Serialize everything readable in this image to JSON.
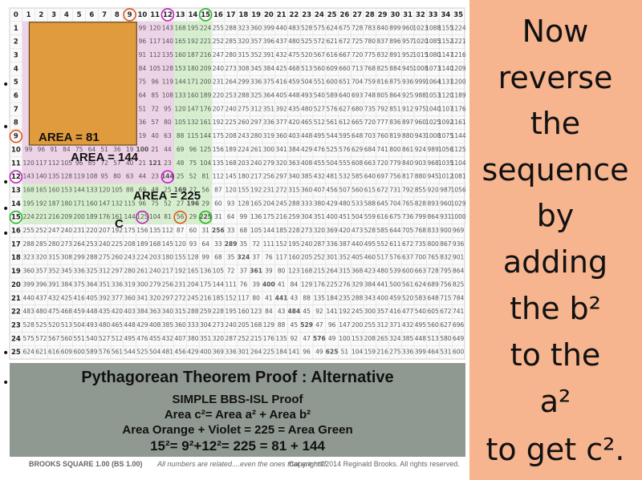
{
  "grid": {
    "header": [
      0,
      1,
      2,
      3,
      4,
      5,
      6,
      7,
      8,
      9,
      10,
      11,
      12,
      13,
      14,
      15,
      16,
      17,
      18,
      19,
      20,
      21,
      22,
      23,
      24,
      25,
      26,
      27,
      28,
      29,
      30,
      31,
      32,
      33,
      34,
      35
    ],
    "rows": [
      {
        "label": 1,
        "cells": [
          null,
          null,
          null,
          null,
          null,
          null,
          null,
          null,
          null,
          99,
          120,
          143,
          168,
          195,
          224,
          255,
          288,
          323,
          360,
          399,
          440,
          483,
          528,
          575,
          624,
          675,
          728,
          783,
          840,
          899,
          960,
          1023,
          1088,
          1155,
          1224
        ]
      },
      {
        "label": 2,
        "cells": [
          null,
          null,
          null,
          null,
          null,
          null,
          null,
          null,
          null,
          96,
          117,
          140,
          165,
          192,
          221,
          252,
          285,
          320,
          357,
          396,
          437,
          480,
          525,
          572,
          621,
          672,
          725,
          780,
          837,
          896,
          957,
          1020,
          1085,
          1152,
          1221
        ]
      },
      {
        "label": 3,
        "cells": [
          null,
          null,
          null,
          null,
          null,
          null,
          null,
          null,
          null,
          91,
          112,
          135,
          160,
          187,
          216,
          247,
          280,
          315,
          352,
          391,
          432,
          475,
          520,
          567,
          616,
          667,
          720,
          775,
          832,
          891,
          952,
          1015,
          1080,
          1147,
          1216
        ]
      },
      {
        "label": 4,
        "cells": [
          null,
          null,
          null,
          null,
          null,
          null,
          null,
          null,
          null,
          84,
          105,
          128,
          153,
          180,
          209,
          240,
          273,
          308,
          345,
          384,
          425,
          468,
          513,
          560,
          609,
          660,
          713,
          768,
          825,
          884,
          945,
          1008,
          1073,
          1140,
          1209
        ]
      },
      {
        "label": 5,
        "cells": [
          null,
          null,
          null,
          null,
          null,
          null,
          null,
          null,
          null,
          75,
          96,
          119,
          144,
          171,
          200,
          231,
          264,
          299,
          336,
          375,
          416,
          459,
          504,
          551,
          600,
          651,
          704,
          759,
          816,
          875,
          936,
          999,
          1064,
          1131,
          1200
        ]
      },
      {
        "label": 6,
        "cells": [
          null,
          null,
          null,
          null,
          null,
          null,
          null,
          null,
          null,
          64,
          85,
          108,
          133,
          160,
          189,
          220,
          253,
          288,
          325,
          364,
          405,
          448,
          493,
          540,
          589,
          640,
          693,
          748,
          805,
          864,
          925,
          988,
          1053,
          1120,
          1189
        ]
      },
      {
        "label": 7,
        "cells": [
          null,
          null,
          null,
          null,
          null,
          null,
          null,
          null,
          null,
          51,
          72,
          95,
          120,
          147,
          176,
          207,
          240,
          275,
          312,
          351,
          392,
          435,
          480,
          527,
          576,
          627,
          680,
          735,
          792,
          851,
          912,
          975,
          1040,
          1107,
          1176
        ]
      },
      {
        "label": 8,
        "cells": [
          null,
          null,
          null,
          null,
          null,
          null,
          null,
          null,
          null,
          36,
          57,
          80,
          105,
          132,
          161,
          192,
          225,
          260,
          297,
          336,
          377,
          420,
          465,
          512,
          561,
          612,
          665,
          720,
          777,
          836,
          897,
          960,
          1025,
          1092,
          1161
        ]
      },
      {
        "label": 9,
        "cells": [
          null,
          null,
          null,
          null,
          null,
          null,
          null,
          null,
          null,
          19,
          40,
          63,
          88,
          115,
          144,
          175,
          208,
          243,
          280,
          319,
          360,
          403,
          448,
          495,
          544,
          595,
          648,
          703,
          760,
          819,
          880,
          943,
          1008,
          1075,
          1144
        ]
      },
      {
        "label": 10,
        "cells": [
          99,
          96,
          91,
          84,
          75,
          64,
          51,
          36,
          19,
          100,
          21,
          44,
          69,
          96,
          125,
          156,
          189,
          224,
          261,
          300,
          341,
          384,
          429,
          476,
          525,
          576,
          629,
          684,
          741,
          800,
          861,
          924,
          989,
          1056,
          1125
        ]
      },
      {
        "label": 11,
        "cells": [
          120,
          117,
          112,
          105,
          96,
          85,
          72,
          57,
          40,
          21,
          121,
          23,
          48,
          75,
          104,
          135,
          168,
          203,
          240,
          279,
          320,
          363,
          408,
          455,
          504,
          555,
          608,
          663,
          720,
          779,
          840,
          903,
          968,
          1035,
          1104
        ]
      },
      {
        "label": 12,
        "cells": [
          143,
          140,
          135,
          128,
          119,
          108,
          95,
          80,
          63,
          44,
          23,
          144,
          25,
          52,
          81,
          112,
          145,
          180,
          217,
          256,
          297,
          340,
          385,
          432,
          481,
          532,
          585,
          640,
          697,
          756,
          817,
          880,
          945,
          1012,
          1081
        ]
      },
      {
        "label": 13,
        "cells": [
          168,
          165,
          160,
          153,
          144,
          133,
          120,
          105,
          88,
          69,
          48,
          25,
          169,
          27,
          56,
          87,
          120,
          155,
          192,
          231,
          272,
          315,
          360,
          407,
          456,
          507,
          560,
          615,
          672,
          731,
          792,
          855,
          920,
          987,
          1056
        ]
      },
      {
        "label": 14,
        "cells": [
          195,
          192,
          187,
          180,
          171,
          160,
          147,
          132,
          115,
          96,
          75,
          52,
          27,
          196,
          29,
          60,
          93,
          128,
          165,
          204,
          245,
          288,
          333,
          380,
          429,
          480,
          533,
          588,
          645,
          704,
          765,
          828,
          893,
          960,
          1029
        ]
      },
      {
        "label": 15,
        "cells": [
          224,
          221,
          216,
          209,
          200,
          189,
          176,
          161,
          144,
          125,
          104,
          81,
          56,
          29,
          225,
          31,
          64,
          99,
          136,
          175,
          216,
          259,
          304,
          351,
          400,
          451,
          504,
          559,
          616,
          675,
          736,
          799,
          864,
          931,
          1000
        ]
      },
      {
        "label": 16,
        "cells": [
          255,
          252,
          247,
          240,
          231,
          220,
          207,
          192,
          175,
          156,
          135,
          112,
          87,
          60,
          31,
          256,
          33,
          68,
          105,
          144,
          185,
          228,
          273,
          320,
          369,
          420,
          473,
          528,
          585,
          644,
          705,
          768,
          833,
          900,
          969
        ]
      },
      {
        "label": 17,
        "cells": [
          288,
          285,
          280,
          273,
          264,
          253,
          240,
          225,
          208,
          189,
          168,
          145,
          120,
          93,
          64,
          33,
          289,
          35,
          72,
          111,
          152,
          195,
          240,
          287,
          336,
          387,
          440,
          495,
          552,
          611,
          672,
          735,
          800,
          867,
          936
        ]
      },
      {
        "label": 18,
        "cells": [
          323,
          320,
          315,
          308,
          299,
          288,
          275,
          260,
          243,
          224,
          203,
          180,
          155,
          128,
          99,
          68,
          35,
          324,
          37,
          76,
          117,
          160,
          205,
          252,
          301,
          352,
          405,
          460,
          517,
          576,
          637,
          700,
          765,
          832,
          901
        ]
      },
      {
        "label": 19,
        "cells": [
          360,
          357,
          352,
          345,
          336,
          325,
          312,
          297,
          280,
          261,
          240,
          217,
          192,
          165,
          136,
          105,
          72,
          37,
          361,
          39,
          80,
          123,
          168,
          215,
          264,
          315,
          368,
          423,
          480,
          539,
          600,
          663,
          728,
          795,
          864
        ]
      },
      {
        "label": 20,
        "cells": [
          399,
          396,
          391,
          384,
          375,
          364,
          351,
          336,
          319,
          300,
          279,
          256,
          231,
          204,
          175,
          144,
          111,
          76,
          39,
          400,
          41,
          84,
          129,
          176,
          225,
          276,
          329,
          384,
          441,
          500,
          561,
          624,
          689,
          756,
          825
        ]
      },
      {
        "label": 21,
        "cells": [
          440,
          437,
          432,
          425,
          416,
          405,
          392,
          377,
          360,
          341,
          320,
          297,
          272,
          245,
          216,
          185,
          152,
          117,
          80,
          41,
          441,
          43,
          88,
          135,
          184,
          235,
          288,
          343,
          400,
          459,
          520,
          583,
          648,
          715,
          784
        ]
      },
      {
        "label": 22,
        "cells": [
          483,
          480,
          475,
          468,
          459,
          448,
          435,
          420,
          403,
          384,
          363,
          340,
          315,
          288,
          259,
          228,
          195,
          160,
          123,
          84,
          43,
          484,
          45,
          92,
          141,
          192,
          245,
          300,
          357,
          416,
          477,
          540,
          605,
          672,
          741
        ]
      },
      {
        "label": 23,
        "cells": [
          528,
          525,
          520,
          513,
          504,
          493,
          480,
          465,
          448,
          429,
          408,
          385,
          360,
          333,
          304,
          273,
          240,
          205,
          168,
          129,
          88,
          45,
          529,
          47,
          96,
          147,
          200,
          255,
          312,
          371,
          432,
          495,
          560,
          627,
          696
        ]
      },
      {
        "label": 24,
        "cells": [
          575,
          572,
          567,
          560,
          551,
          540,
          527,
          512,
          495,
          476,
          455,
          432,
          407,
          380,
          351,
          320,
          287,
          252,
          215,
          176,
          135,
          92,
          47,
          576,
          49,
          100,
          153,
          208,
          265,
          324,
          385,
          448,
          513,
          580,
          649
        ]
      },
      {
        "label": 25,
        "cells": [
          624,
          621,
          616,
          609,
          600,
          589,
          576,
          561,
          544,
          525,
          504,
          481,
          456,
          429,
          400,
          369,
          336,
          301,
          264,
          225,
          184,
          141,
          96,
          49,
          625,
          51,
          104,
          159,
          216,
          275,
          336,
          399,
          464,
          531,
          600
        ]
      }
    ]
  },
  "labels": {
    "area_orange": "AREA = 81",
    "area_violet": "AREA = 144",
    "area_green": "AREA = 225",
    "c": "C"
  },
  "proof": {
    "title": "Pythagorean Theorem  Proof : Alternative",
    "lines": [
      "SIMPLE BBS-ISL Proof",
      "Area c²= Area a² + Area b²",
      "Area Orange + Violet = 225 = Area Green",
      "15²= 9²+12²= 225 = 81 + 144"
    ]
  },
  "footer": {
    "name": "BROOKS SQUARE 1.00 (BS 1.00)",
    "note": "All numbers are related....even the ones that are not!",
    "copyright": "Copyright©2014 Reginald Brooks. All rights reserved."
  },
  "side_text": [
    "Now",
    "reverse",
    "the",
    "sequence",
    "by",
    "adding",
    "the b²",
    "to the",
    "a²",
    "to get c²."
  ]
}
